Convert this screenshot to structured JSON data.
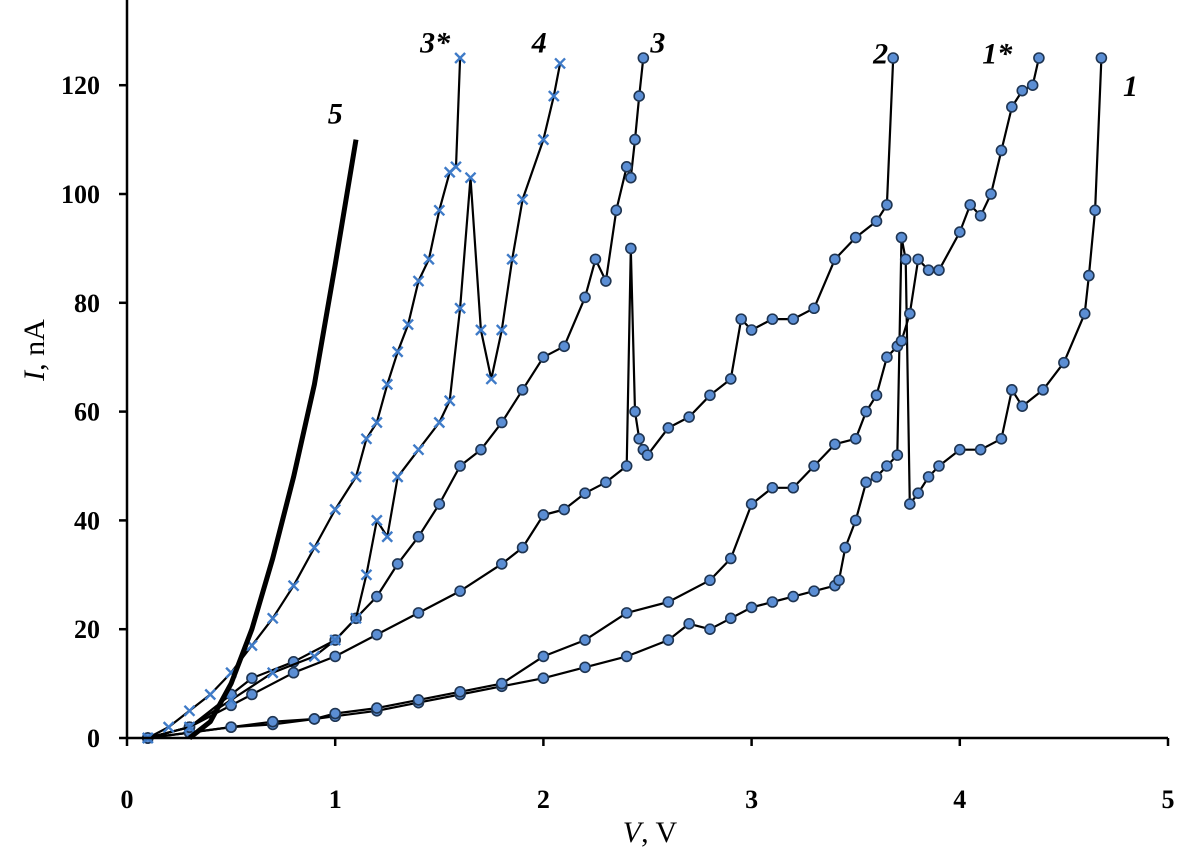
{
  "chart_data": {
    "type": "line",
    "title": "",
    "xlabel": {
      "var": "V",
      "unit": ", V"
    },
    "ylabel": {
      "var": "I",
      "unit": ", nA"
    },
    "xlim": [
      0,
      5
    ],
    "ylim": [
      0,
      125
    ],
    "x_ticks": [
      0,
      1,
      2,
      3,
      4,
      5
    ],
    "y_ticks": [
      0,
      20,
      40,
      60,
      80,
      100,
      120
    ],
    "grid": false,
    "legend": "none",
    "colors": {
      "marker_fill": "#5b8ed4",
      "marker_edge": "#1f3552",
      "cross": "#3f7bc8",
      "line": "#000000"
    },
    "series": [
      {
        "name": "1",
        "marker": "circle",
        "label_at": [
          4.82,
          118
        ],
        "x": [
          0.1,
          0.3,
          0.5,
          0.7,
          0.9,
          1.0,
          1.2,
          1.4,
          1.6,
          1.8,
          2.0,
          2.2,
          2.4,
          2.6,
          2.7,
          2.8,
          2.9,
          3.0,
          3.1,
          3.2,
          3.3,
          3.4,
          3.42,
          3.45,
          3.5,
          3.55,
          3.6,
          3.65,
          3.7,
          3.72,
          3.74,
          3.76,
          3.8,
          3.85,
          3.9,
          4.0,
          4.1,
          4.2,
          4.25,
          4.3,
          4.4,
          4.5,
          4.6,
          4.62,
          4.65,
          4.68
        ],
        "y": [
          0,
          1,
          2,
          2.5,
          3.5,
          4,
          5,
          6.5,
          8,
          9.5,
          11,
          13,
          15,
          18,
          21,
          20,
          22,
          24,
          25,
          26,
          27,
          28,
          29,
          35,
          40,
          47,
          48,
          50,
          52,
          92,
          88,
          43,
          45,
          48,
          50,
          53,
          53,
          55,
          64,
          61,
          64,
          69,
          78,
          85,
          97,
          125
        ]
      },
      {
        "name": "1*",
        "marker": "circle",
        "label_at": [
          4.18,
          124
        ],
        "x": [
          0.1,
          0.3,
          0.5,
          0.7,
          0.9,
          1.0,
          1.2,
          1.4,
          1.6,
          1.8,
          2.0,
          2.2,
          2.4,
          2.6,
          2.8,
          2.9,
          3.0,
          3.1,
          3.2,
          3.3,
          3.4,
          3.5,
          3.55,
          3.6,
          3.65,
          3.7,
          3.72,
          3.76,
          3.8,
          3.85,
          3.9,
          4.0,
          4.05,
          4.1,
          4.15,
          4.2,
          4.25,
          4.3,
          4.35,
          4.38
        ],
        "y": [
          0,
          1,
          2,
          3,
          3.5,
          4.5,
          5.5,
          7,
          8.5,
          10,
          15,
          18,
          23,
          25,
          29,
          33,
          43,
          46,
          46,
          50,
          54,
          55,
          60,
          63,
          70,
          72,
          73,
          78,
          88,
          86,
          86,
          93,
          98,
          96,
          100,
          108,
          116,
          119,
          120,
          125
        ]
      },
      {
        "name": "2",
        "marker": "circle",
        "label_at": [
          3.62,
          124
        ],
        "x": [
          0.1,
          0.3,
          0.5,
          0.6,
          0.8,
          1.0,
          1.2,
          1.4,
          1.6,
          1.8,
          1.9,
          2.0,
          2.1,
          2.2,
          2.3,
          2.4,
          2.42,
          2.44,
          2.46,
          2.48,
          2.5,
          2.6,
          2.7,
          2.8,
          2.9,
          2.95,
          3.0,
          3.1,
          3.2,
          3.3,
          3.4,
          3.5,
          3.6,
          3.65,
          3.68
        ],
        "y": [
          0,
          2,
          6,
          8,
          12,
          15,
          19,
          23,
          27,
          32,
          35,
          41,
          42,
          45,
          47,
          50,
          90,
          60,
          55,
          53,
          52,
          57,
          59,
          63,
          66,
          77,
          75,
          77,
          77,
          79,
          88,
          92,
          95,
          98,
          125
        ]
      },
      {
        "name": "3",
        "marker": "circle",
        "label_at": [
          2.55,
          126
        ],
        "x": [
          0.1,
          0.3,
          0.5,
          0.6,
          0.8,
          1.0,
          1.1,
          1.2,
          1.3,
          1.4,
          1.5,
          1.6,
          1.7,
          1.8,
          1.9,
          2.0,
          2.1,
          2.2,
          2.25,
          2.3,
          2.35,
          2.4,
          2.42,
          2.44,
          2.46,
          2.48
        ],
        "y": [
          0,
          2,
          8,
          11,
          14,
          18,
          22,
          26,
          32,
          37,
          43,
          50,
          53,
          58,
          64,
          70,
          72,
          81,
          88,
          84,
          97,
          105,
          103,
          110,
          118,
          125
        ]
      },
      {
        "name": "4",
        "marker": "cross",
        "label_at": [
          1.98,
          126
        ],
        "x": [
          0.1,
          0.3,
          0.5,
          0.7,
          0.9,
          1.0,
          1.1,
          1.15,
          1.2,
          1.25,
          1.3,
          1.4,
          1.5,
          1.55,
          1.6,
          1.65,
          1.7,
          1.75,
          1.8,
          1.85,
          1.9,
          2.0,
          2.05,
          2.08
        ],
        "y": [
          0,
          2,
          7,
          12,
          15,
          18,
          22,
          30,
          40,
          37,
          48,
          53,
          58,
          62,
          79,
          103,
          75,
          66,
          75,
          88,
          99,
          110,
          118,
          124
        ]
      },
      {
        "name": "3*",
        "marker": "cross",
        "label_at": [
          1.48,
          126
        ],
        "x": [
          0.1,
          0.2,
          0.3,
          0.4,
          0.5,
          0.6,
          0.7,
          0.8,
          0.9,
          1.0,
          1.1,
          1.15,
          1.2,
          1.25,
          1.3,
          1.35,
          1.4,
          1.45,
          1.5,
          1.55,
          1.58,
          1.6
        ],
        "y": [
          0,
          2,
          5,
          8,
          12,
          17,
          22,
          28,
          35,
          42,
          48,
          55,
          58,
          65,
          71,
          76,
          84,
          88,
          97,
          104,
          105,
          125
        ]
      },
      {
        "name": "5",
        "marker": "none",
        "thick": true,
        "label_at": [
          1.0,
          113
        ],
        "x": [
          0.3,
          0.4,
          0.5,
          0.6,
          0.7,
          0.8,
          0.9,
          1.0,
          1.1
        ],
        "y": [
          0,
          3,
          10,
          20,
          33,
          48,
          65,
          87,
          110
        ]
      }
    ]
  }
}
